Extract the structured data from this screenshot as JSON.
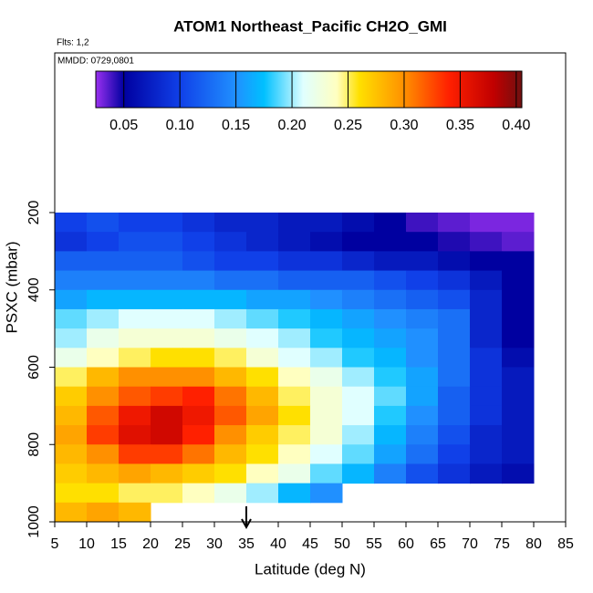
{
  "chart_data": {
    "type": "heatmap",
    "title": "ATOM1 Northeast_Pacific CH2O_GMI",
    "annotations": [
      "Flts: 1,2",
      "MMDD: 0729,0801"
    ],
    "xlabel": "Latitude (deg N)",
    "ylabel": "PSXC (mbar)",
    "xlim": [
      5,
      85
    ],
    "xticks": [
      5,
      10,
      15,
      20,
      25,
      30,
      35,
      40,
      45,
      50,
      55,
      60,
      65,
      70,
      75,
      80,
      85
    ],
    "ylim": [
      1000,
      -213
    ],
    "yticks": [
      200,
      400,
      600,
      800,
      1000
    ],
    "x_edges": [
      5,
      10,
      15,
      20,
      25,
      30,
      35,
      40,
      45,
      50,
      55,
      60,
      65,
      70,
      75,
      80
    ],
    "y_edges": [
      200,
      250,
      300,
      350,
      400,
      450,
      500,
      550,
      600,
      650,
      700,
      750,
      800,
      850,
      900,
      950,
      1000
    ],
    "values": [
      [
        0.1,
        0.11,
        0.1,
        0.1,
        0.09,
        0.08,
        0.08,
        0.07,
        0.07,
        0.06,
        0.05,
        0.04,
        0.035,
        0.03,
        0.03
      ],
      [
        0.09,
        0.1,
        0.11,
        0.11,
        0.1,
        0.09,
        0.08,
        0.07,
        0.06,
        0.05,
        0.05,
        0.05,
        0.045,
        0.04,
        0.035
      ],
      [
        0.12,
        0.12,
        0.12,
        0.12,
        0.11,
        0.1,
        0.1,
        0.09,
        0.09,
        0.08,
        0.07,
        0.07,
        0.06,
        0.05,
        0.05
      ],
      [
        0.14,
        0.14,
        0.14,
        0.14,
        0.14,
        0.13,
        0.13,
        0.12,
        0.12,
        0.12,
        0.11,
        0.1,
        0.09,
        0.07,
        0.05
      ],
      [
        0.16,
        0.17,
        0.17,
        0.17,
        0.17,
        0.17,
        0.16,
        0.16,
        0.15,
        0.14,
        0.13,
        0.12,
        0.11,
        0.08,
        0.05
      ],
      [
        0.19,
        0.2,
        0.21,
        0.21,
        0.21,
        0.2,
        0.19,
        0.18,
        0.17,
        0.16,
        0.15,
        0.14,
        0.13,
        0.08,
        0.05
      ],
      [
        0.2,
        0.22,
        0.23,
        0.23,
        0.23,
        0.22,
        0.21,
        0.2,
        0.18,
        0.17,
        0.16,
        0.15,
        0.13,
        0.08,
        0.05
      ],
      [
        0.22,
        0.24,
        0.25,
        0.26,
        0.26,
        0.25,
        0.23,
        0.21,
        0.2,
        0.18,
        0.17,
        0.15,
        0.13,
        0.09,
        0.06
      ],
      [
        0.25,
        0.28,
        0.3,
        0.3,
        0.3,
        0.28,
        0.26,
        0.24,
        0.22,
        0.2,
        0.18,
        0.16,
        0.13,
        0.09,
        0.07
      ],
      [
        0.27,
        0.3,
        0.32,
        0.33,
        0.34,
        0.31,
        0.28,
        0.25,
        0.23,
        0.21,
        0.19,
        0.16,
        0.12,
        0.09,
        0.07
      ],
      [
        0.28,
        0.32,
        0.35,
        0.37,
        0.35,
        0.32,
        0.29,
        0.26,
        0.23,
        0.21,
        0.18,
        0.15,
        0.12,
        0.09,
        0.07
      ],
      [
        0.29,
        0.33,
        0.36,
        0.37,
        0.34,
        0.3,
        0.27,
        0.25,
        0.23,
        0.2,
        0.17,
        0.14,
        0.11,
        0.08,
        0.07
      ],
      [
        0.28,
        0.3,
        0.33,
        0.33,
        0.31,
        0.28,
        0.26,
        0.24,
        0.21,
        0.19,
        0.16,
        0.13,
        0.1,
        0.08,
        0.07
      ],
      [
        0.27,
        0.28,
        0.29,
        0.28,
        0.27,
        0.26,
        0.24,
        0.22,
        0.19,
        0.17,
        0.14,
        0.11,
        0.09,
        0.07,
        0.06
      ],
      [
        0.26,
        0.26,
        0.25,
        0.25,
        0.24,
        0.22,
        0.2,
        0.17,
        0.15,
        null,
        null,
        null,
        null,
        null,
        null
      ],
      [
        0.28,
        0.29,
        0.28,
        null,
        null,
        null,
        null,
        null,
        null,
        null,
        null,
        null,
        null,
        null,
        null
      ]
    ],
    "colorbar_lim": [
      0.025,
      0.405
    ],
    "colorbar_ticks": [
      0.05,
      {
        "value": 0.1,
        "label": "0.10"
      },
      0.15,
      {
        "value": 0.2,
        "label": "0.20"
      },
      0.25,
      {
        "value": 0.3,
        "label": "0.30"
      },
      0.35,
      {
        "value": 0.4,
        "label": "0.40"
      }
    ],
    "colorscale": [
      [
        0.025,
        "#9a30f0"
      ],
      [
        0.05,
        "#0000a0"
      ],
      [
        0.1,
        "#1040e8"
      ],
      [
        0.15,
        "#2090ff"
      ],
      [
        0.175,
        "#00c0ff"
      ],
      [
        0.21,
        "#e0ffff"
      ],
      [
        0.24,
        "#ffffc0"
      ],
      [
        0.26,
        "#ffe000"
      ],
      [
        0.3,
        "#ff9000"
      ],
      [
        0.34,
        "#ff2000"
      ],
      [
        0.38,
        "#c00000"
      ],
      [
        0.405,
        "#701010"
      ]
    ],
    "marker_x": 35
  }
}
